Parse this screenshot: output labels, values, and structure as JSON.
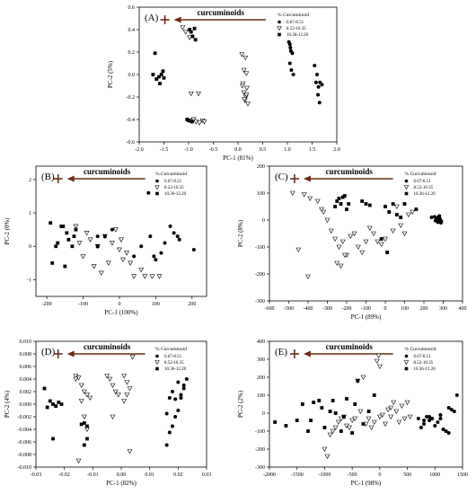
{
  "colors": {
    "arrow": "#6b2c17",
    "marker": "#000000",
    "background": "#ffffff"
  },
  "chart_data": [
    {
      "panel": "(A)",
      "type": "scatter",
      "xlabel": "PC-1 (81%)",
      "ylabel": "PC-2 (5%)",
      "xlim": [
        -2.0,
        2.0
      ],
      "ylim": [
        -0.6,
        0.6
      ],
      "xticks": [
        "-2.0",
        "-1.5",
        "-1.0",
        "-0.5",
        "0.0",
        "0.5",
        "1.0",
        "1.5",
        "2.0"
      ],
      "yticks": [
        "-0.6",
        "-0.4",
        "-0.2",
        "0.0",
        "0.2",
        "0.4",
        "0.6"
      ],
      "annotation": "curcuminoids",
      "legend": {
        "title": "% Curcuminoid",
        "placement": "top-right",
        "entries": [
          "6.67-8.51",
          "8.52-10.35",
          "10.36-12.20"
        ]
      },
      "series": [
        {
          "name": "6.67-8.51",
          "marker": "circle",
          "x": [
            1.03,
            1.05,
            1.06,
            1.07,
            1.1,
            1.05,
            1.08,
            1.12,
            1.55,
            1.6,
            1.58,
            1.63,
            1.66,
            1.7,
            1.62,
            1.65
          ],
          "y": [
            0.29,
            0.27,
            0.24,
            0.21,
            0.19,
            0.1,
            0.04,
            0.0,
            0.08,
            0.0,
            -0.07,
            -0.11,
            -0.07,
            -0.09,
            -0.18,
            -0.25
          ]
        },
        {
          "name": "8.52-10.35",
          "marker": "triangle",
          "x": [
            -1.12,
            -1.06,
            -0.98,
            -0.95,
            -0.8,
            -0.9,
            -0.98,
            -0.9,
            -0.85,
            -0.78,
            -0.72,
            -0.68,
            0.08,
            0.15,
            0.12,
            0.17,
            0.1,
            0.18,
            0.12,
            0.16,
            0.14,
            0.2,
            0.09,
            0.13,
            0.17
          ],
          "y": [
            0.42,
            0.38,
            0.33,
            -0.17,
            -0.17,
            -0.4,
            -0.41,
            -0.4,
            -0.42,
            -0.43,
            -0.41,
            -0.42,
            0.18,
            0.15,
            0.04,
            0.01,
            -0.08,
            -0.12,
            -0.16,
            -0.2,
            -0.23,
            -0.26,
            -0.1,
            -0.22,
            -0.18
          ]
        },
        {
          "name": "10.36-12.20",
          "marker": "square",
          "x": [
            -1.68,
            -1.72,
            -1.65,
            -1.6,
            -1.55,
            -1.58,
            -1.5,
            -1.52,
            -0.98,
            -0.95,
            -0.88,
            -0.92,
            -0.86,
            -1.03,
            -1.0,
            -0.93
          ],
          "y": [
            0.19,
            0.0,
            -0.04,
            -0.02,
            0.0,
            -0.08,
            -0.03,
            0.03,
            0.4,
            0.38,
            0.41,
            0.34,
            0.31,
            -0.4,
            -0.41,
            -0.42
          ]
        }
      ]
    },
    {
      "panel": "(B)",
      "type": "scatter",
      "xlabel": "PC-1 (100%)",
      "ylabel": "PC-2 (0%)",
      "xlim": [
        -230,
        240
      ],
      "ylim": [
        -1.5,
        2.4
      ],
      "xticks": [
        "-200",
        "-100",
        "0",
        "100",
        "200"
      ],
      "yticks": [
        "-1",
        "0",
        "1",
        "2"
      ],
      "annotation": "curcuminoids",
      "legend": {
        "title": "% Curcuminoid",
        "placement": "top-right",
        "entries": [
          "6.67-8.51",
          "8.52-10.35",
          "10.36-12.20"
        ]
      },
      "series": [
        {
          "name": "6.67-8.51",
          "marker": "circle",
          "x": [
            80,
            140,
            150,
            160,
            165,
            205,
            -60,
            40,
            100,
            115,
            125,
            85,
            95,
            60,
            -20
          ],
          "y": [
            1.6,
            0.6,
            0.4,
            0.3,
            0.2,
            -0.1,
            0.3,
            -0.3,
            -0.4,
            -0.2,
            0.1,
            0.3,
            -0.3,
            0.0,
            0.5
          ]
        },
        {
          "name": "8.52-10.35",
          "marker": "triangle",
          "x": [
            -110,
            -80,
            -60,
            -40,
            -20,
            0,
            20,
            -100,
            -70,
            -50,
            -30,
            10,
            30,
            60,
            -90,
            -120,
            -10,
            40,
            70,
            90,
            110,
            5
          ],
          "y": [
            0.1,
            0.2,
            0.0,
            0.3,
            0.1,
            -0.1,
            -0.2,
            -0.3,
            -0.6,
            -0.8,
            -0.5,
            -0.4,
            -0.5,
            -0.7,
            0.4,
            0.6,
            0.5,
            -0.9,
            -0.9,
            -0.9,
            -0.9,
            0.2
          ]
        },
        {
          "name": "10.36-12.20",
          "marker": "square",
          "x": [
            -190,
            -185,
            -170,
            -160,
            -150,
            -145,
            -140,
            -130,
            -125,
            -120,
            -175,
            -155,
            -60,
            -40
          ],
          "y": [
            0.7,
            -0.5,
            0.1,
            0.6,
            -0.6,
            0.4,
            0.2,
            0.0,
            0.3,
            0.5,
            0.0,
            0.6,
            0.0,
            0.3
          ]
        }
      ]
    },
    {
      "panel": "(C)",
      "type": "scatter",
      "xlabel": "PC-1 (89%)",
      "ylabel": "PC-2 (8%)",
      "xlim": [
        -600,
        400
      ],
      "ylim": [
        -300,
        200
      ],
      "xticks": [
        "-600",
        "-500",
        "-400",
        "-300",
        "-200",
        "-100",
        "0",
        "100",
        "200",
        "300",
        "400"
      ],
      "yticks": [
        "-300",
        "-200",
        "-100",
        "0",
        "100",
        "200"
      ],
      "annotation": "curcuminoids",
      "legend": {
        "title": "% Curcuminoid",
        "placement": "top-right",
        "entries": [
          "6.67-8.51",
          "8.52-10.35",
          "10.36-12.20"
        ]
      },
      "series": [
        {
          "name": "6.67-8.51",
          "marker": "circle",
          "x": [
            240,
            255,
            265,
            270,
            275,
            280,
            285,
            290,
            260,
            272,
            282,
            278,
            268,
            288
          ],
          "y": [
            10,
            12,
            8,
            5,
            10,
            15,
            0,
            -5,
            -2,
            -8,
            5,
            12,
            2,
            -10
          ]
        },
        {
          "name": "8.52-10.35",
          "marker": "triangle",
          "x": [
            -480,
            -420,
            -390,
            -350,
            -320,
            -300,
            -280,
            -260,
            -240,
            -220,
            -200,
            -250,
            -230,
            -210,
            -180,
            -160,
            -140,
            -120,
            -100,
            -80,
            -60,
            -40,
            -20,
            0,
            40,
            80,
            120,
            140,
            -400,
            -450,
            -330,
            60,
            100
          ],
          "y": [
            100,
            95,
            80,
            70,
            30,
            0,
            -40,
            -70,
            -100,
            -80,
            -130,
            -160,
            -170,
            -130,
            -60,
            -50,
            -100,
            -120,
            -80,
            -30,
            -50,
            -80,
            -90,
            -70,
            -40,
            -20,
            20,
            30,
            -210,
            -110,
            40,
            50,
            -50
          ]
        },
        {
          "name": "10.36-12.20",
          "marker": "square",
          "x": [
            -250,
            -240,
            -230,
            -220,
            -210,
            -260,
            -200,
            -190,
            -120,
            -100,
            -80,
            0,
            20,
            40,
            60,
            80,
            -20,
            10,
            100,
            160
          ],
          "y": [
            70,
            80,
            60,
            85,
            90,
            50,
            40,
            60,
            70,
            60,
            55,
            50,
            30,
            60,
            20,
            10,
            -70,
            -120,
            60,
            40
          ]
        }
      ]
    },
    {
      "panel": "(D)",
      "type": "scatter",
      "xlabel": "PC-1 (82%)",
      "ylabel": "PC-2 (4%)",
      "xlim": [
        -0.03,
        0.03
      ],
      "ylim": [
        -0.01,
        0.01
      ],
      "xticks": [
        "-0.03",
        "-0.02",
        "-0.01",
        "0.00",
        "0.01",
        "0.02",
        "0.03"
      ],
      "yticks": [
        "-0.010",
        "-0.008",
        "-0.006",
        "-0.004",
        "-0.002",
        "0.000",
        "0.002",
        "0.004",
        "0.006",
        "0.008",
        "0.010"
      ],
      "annotation": "curcuminoids",
      "legend": {
        "title": "% Curcuminoid",
        "placement": "top-right",
        "entries": [
          "6.67-8.51",
          "8.52-10.35",
          "10.36-12.20"
        ]
      },
      "series": [
        {
          "name": "6.67-8.51",
          "marker": "circle",
          "x": [
            0.016,
            0.017,
            0.018,
            0.019,
            0.02,
            0.021,
            0.022,
            0.023,
            0.018,
            0.017,
            0.02,
            0.022,
            0.019,
            0.016,
            0.021
          ],
          "y": [
            -0.0065,
            -0.0045,
            -0.0035,
            -0.002,
            -0.001,
            0.001,
            0.0025,
            0.004,
            0.002,
            0.001,
            0.0035,
            0.003,
            0.0008,
            -0.0015,
            0.0015
          ]
        },
        {
          "name": "8.52-10.35",
          "marker": "triangle",
          "x": [
            -0.016,
            -0.015,
            -0.014,
            -0.013,
            -0.012,
            -0.011,
            -0.014,
            -0.013,
            -0.012,
            -0.015,
            -0.005,
            -0.004,
            -0.003,
            -0.002,
            -0.001,
            0.001,
            0.002,
            0.003,
            0.004,
            -0.003,
            0.003,
            0.002,
            0.001,
            -0.016
          ],
          "y": [
            0.0045,
            0.0042,
            0.003,
            0.002,
            0.0015,
            0.001,
            0.0005,
            -0.002,
            -0.004,
            -0.009,
            0.0045,
            0.004,
            0.003,
            0.002,
            0.0015,
            0.0045,
            0.0035,
            0.0025,
            0.0075,
            -0.002,
            -0.0075,
            0.0015,
            0.0005,
            0.004
          ]
        },
        {
          "name": "10.36-12.20",
          "marker": "square",
          "x": [
            -0.027,
            -0.025,
            -0.024,
            -0.023,
            -0.022,
            -0.021,
            -0.026,
            -0.014,
            -0.013,
            -0.012,
            -0.013,
            -0.012,
            -0.024
          ],
          "y": [
            0.0025,
            0.0005,
            0.0,
            -0.0003,
            0.0003,
            0.0,
            -0.0005,
            -0.0032,
            -0.003,
            -0.0035,
            -0.0065,
            -0.0055,
            -0.0055
          ]
        }
      ]
    },
    {
      "panel": "(E)",
      "type": "scatter",
      "xlabel": "PC-1 (98%)",
      "ylabel": "PC-2 (2%)",
      "xlim": [
        -2000,
        1500
      ],
      "ylim": [
        -300,
        400
      ],
      "xticks": [
        "-2000",
        "-1500",
        "-1000",
        "-500",
        "0",
        "500",
        "1000",
        "1500"
      ],
      "yticks": [
        "-300",
        "-200",
        "-100",
        "0",
        "100",
        "200",
        "300",
        "400"
      ],
      "annotation": "curcuminoids",
      "legend": {
        "title": "% Curcuminoid",
        "placement": "top-right",
        "entries": [
          "6.67-8.51",
          "8.52-10.35",
          "10.36-12.20"
        ]
      },
      "series": [
        {
          "name": "6.67-8.51",
          "marker": "circle",
          "x": [
            700,
            750,
            800,
            850,
            900,
            950,
            1000,
            1050,
            1100,
            1150,
            1200,
            1250,
            1300,
            1350,
            1400,
            800,
            900,
            1100,
            1250
          ],
          "y": [
            -30,
            -80,
            -60,
            -20,
            -40,
            -30,
            -70,
            -50,
            -10,
            -90,
            -100,
            30,
            20,
            10,
            100,
            -40,
            -20,
            -30,
            -110
          ]
        },
        {
          "name": "8.52-10.35",
          "marker": "triangle",
          "x": [
            -1000,
            -900,
            -800,
            -700,
            -600,
            -500,
            -400,
            -300,
            -200,
            -100,
            0,
            100,
            200,
            300,
            400,
            500,
            -50,
            -20,
            0,
            -950,
            -850,
            -750,
            -650,
            -550,
            -450,
            -350,
            -250,
            -150,
            200,
            350,
            450,
            50,
            150,
            250,
            550
          ],
          "y": [
            -200,
            -120,
            -80,
            -30,
            -70,
            -40,
            180,
            200,
            -30,
            -50,
            -20,
            -60,
            -20,
            10,
            40,
            60,
            290,
            320,
            260,
            -240,
            -100,
            -50,
            -20,
            -80,
            -30,
            10,
            -60,
            -80,
            30,
            -50,
            -30,
            -10,
            20,
            60,
            -20
          ]
        },
        {
          "name": "10.36-12.20",
          "marker": "square",
          "x": [
            -1900,
            -1700,
            -1500,
            -1300,
            -1200,
            -1100,
            -1000,
            -900,
            -800,
            -700,
            -600,
            -500,
            -400,
            -300,
            -200,
            -100,
            -1400,
            -1250,
            -1050,
            -850,
            -650,
            -450
          ],
          "y": [
            -50,
            -70,
            -40,
            -100,
            60,
            70,
            -80,
            10,
            0,
            -100,
            80,
            -110,
            180,
            -60,
            10,
            100,
            50,
            -40,
            30,
            70,
            -20,
            50
          ]
        }
      ]
    }
  ]
}
